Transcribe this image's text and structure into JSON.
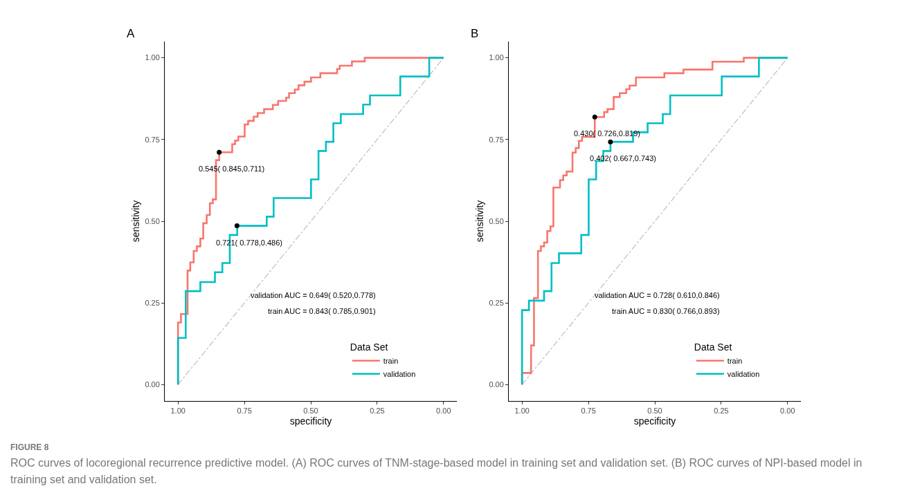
{
  "chart_data": [
    {
      "type": "step",
      "title": "A",
      "xlabel": "specificity",
      "ylabel": "sensitivity",
      "legend_title": "Data Set",
      "legend": "bottom right",
      "grid": false,
      "xlim": [
        1.05,
        -0.05
      ],
      "ylim": [
        -0.05,
        1.05
      ],
      "xticks": [
        {
          "value": 1,
          "label": "1.00"
        },
        {
          "value": 0.75,
          "label": "0.75"
        },
        {
          "value": 0.5,
          "label": "0.50"
        },
        {
          "value": 0.25,
          "label": "0.25"
        },
        {
          "value": 0,
          "label": "0.00"
        }
      ],
      "yticks": [
        {
          "value": 0,
          "label": "0.00"
        },
        {
          "value": 0.25,
          "label": "0.25"
        },
        {
          "value": 0.5,
          "label": "0.50"
        },
        {
          "value": 0.75,
          "label": "0.75"
        },
        {
          "value": 1,
          "label": "1.00"
        }
      ],
      "series": [
        {
          "type": "line",
          "color": "#bebebe",
          "line_style": "dashed",
          "x": [
            1,
            0
          ],
          "values": [
            0,
            1
          ]
        },
        {
          "name": "train",
          "color": "#f8766d",
          "x": [
            1,
            1,
            0.989,
            0.964,
            0.954,
            0.941,
            0.929,
            0.916,
            0.905,
            0.892,
            0.88,
            0.869,
            0.857,
            0.845,
            0.796,
            0.785,
            0.773,
            0.749,
            0.736,
            0.715,
            0.7,
            0.676,
            0.643,
            0.623,
            0.593,
            0.582,
            0.56,
            0.546,
            0.524,
            0.499,
            0.464,
            0.401,
            0.391,
            0.345,
            0.297,
            0
          ],
          "values": [
            0,
            0.19,
            0.216,
            0.349,
            0.374,
            0.409,
            0.423,
            0.447,
            0.494,
            0.519,
            0.555,
            0.567,
            0.687,
            0.711,
            0.736,
            0.747,
            0.759,
            0.796,
            0.807,
            0.82,
            0.831,
            0.843,
            0.856,
            0.868,
            0.878,
            0.892,
            0.903,
            0.916,
            0.927,
            0.94,
            0.953,
            0.966,
            0.976,
            0.989,
            1,
            1
          ]
        },
        {
          "name": "validation",
          "color": "#00bfc4",
          "x": [
            1,
            1,
            0.971,
            0.916,
            0.861,
            0.833,
            0.805,
            0.777,
            0.666,
            0.64,
            0.499,
            0.471,
            0.443,
            0.415,
            0.387,
            0.303,
            0.277,
            0.163,
            0.054,
            0
          ],
          "values": [
            0,
            0.143,
            0.286,
            0.314,
            0.344,
            0.372,
            0.458,
            0.486,
            0.514,
            0.571,
            0.628,
            0.715,
            0.743,
            0.8,
            0.828,
            0.857,
            0.885,
            0.943,
            1,
            1
          ]
        },
        {
          "type": "scatter",
          "color": "#000000",
          "marker": "circle",
          "x": [
            0.845,
            0.778
          ],
          "values": [
            0.711,
            0.486
          ]
        }
      ],
      "annotations": [
        {
          "text": "0.545( 0.845,0.711)",
          "x": 0.845,
          "y": 0.711
        },
        {
          "text": "0.721( 0.778,0.486)",
          "x": 0.778,
          "y": 0.486
        },
        "validation AUC = 0.649( 0.520,0.778)",
        "train AUC = 0.843( 0.785,0.901)"
      ]
    },
    {
      "type": "step",
      "title": "B",
      "xlabel": "specificity",
      "ylabel": "sensitivity",
      "legend_title": "Data Set",
      "legend": "bottom right",
      "grid": false,
      "xlim": [
        1.05,
        -0.05
      ],
      "ylim": [
        -0.05,
        1.05
      ],
      "xticks": [
        {
          "value": 1,
          "label": "1.00"
        },
        {
          "value": 0.75,
          "label": "0.75"
        },
        {
          "value": 0.5,
          "label": "0.50"
        },
        {
          "value": 0.25,
          "label": "0.25"
        },
        {
          "value": 0,
          "label": "0.00"
        }
      ],
      "yticks": [
        {
          "value": 0,
          "label": "0.00"
        },
        {
          "value": 0.25,
          "label": "0.25"
        },
        {
          "value": 0.5,
          "label": "0.50"
        },
        {
          "value": 0.75,
          "label": "0.75"
        },
        {
          "value": 1,
          "label": "1.00"
        }
      ],
      "series": [
        {
          "type": "line",
          "color": "#bebebe",
          "line_style": "dashed",
          "x": [
            1,
            0
          ],
          "values": [
            0,
            1
          ]
        },
        {
          "name": "train",
          "color": "#f8766d",
          "x": [
            1,
            1,
            0.966,
            0.955,
            0.94,
            0.929,
            0.917,
            0.905,
            0.893,
            0.882,
            0.857,
            0.845,
            0.832,
            0.81,
            0.798,
            0.786,
            0.774,
            0.726,
            0.691,
            0.678,
            0.655,
            0.632,
            0.608,
            0.595,
            0.571,
            0.464,
            0.392,
            0.283,
            0.165,
            0
          ],
          "values": [
            0,
            0.036,
            0.12,
            0.265,
            0.409,
            0.423,
            0.435,
            0.47,
            0.484,
            0.603,
            0.626,
            0.64,
            0.652,
            0.71,
            0.724,
            0.746,
            0.758,
            0.819,
            0.834,
            0.843,
            0.88,
            0.892,
            0.904,
            0.915,
            0.94,
            0.953,
            0.964,
            0.988,
            1,
            1
          ]
        },
        {
          "name": "validation",
          "color": "#00bfc4",
          "x": [
            1,
            1,
            0.974,
            0.917,
            0.889,
            0.861,
            0.777,
            0.749,
            0.721,
            0.694,
            0.667,
            0.582,
            0.527,
            0.47,
            0.442,
            0.248,
            0.108,
            0
          ],
          "values": [
            0,
            0.228,
            0.257,
            0.286,
            0.372,
            0.402,
            0.458,
            0.628,
            0.684,
            0.715,
            0.743,
            0.772,
            0.8,
            0.828,
            0.885,
            0.943,
            1,
            1
          ]
        },
        {
          "type": "scatter",
          "color": "#000000",
          "marker": "circle",
          "x": [
            0.726,
            0.667
          ],
          "values": [
            0.819,
            0.743
          ]
        }
      ],
      "annotations": [
        {
          "text": "0.430( 0.726,0.819)",
          "x": 0.726,
          "y": 0.819
        },
        {
          "text": "0.402( 0.667,0.743)",
          "x": 0.667,
          "y": 0.743
        },
        "validation AUC = 0.728( 0.610,0.846)",
        "train AUC = 0.830( 0.766,0.893)"
      ]
    },
    {
      "type": "other",
      "title": "FIGURE 8",
      "annotations": [
        "ROC curves of locoregional recurrence predictive model. (A) ROC curves of TNM-stage-based model in training set and validation set. (B) ROC curves of NPI-based model in training set and validation set."
      ]
    }
  ]
}
